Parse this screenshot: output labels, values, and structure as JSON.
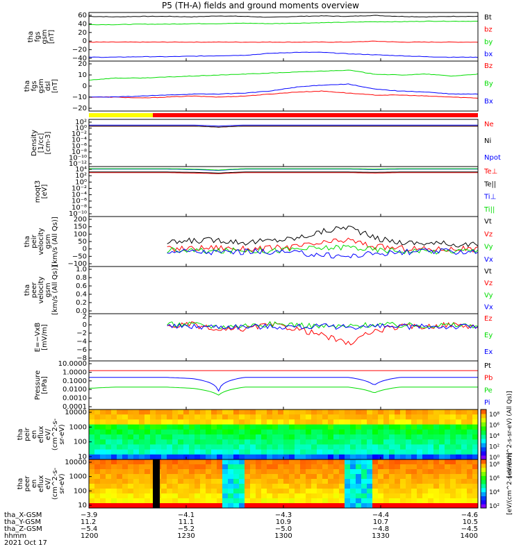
{
  "title": "P5 (TH-A) fields and ground moments overview",
  "colors": {
    "black": "#000000",
    "red": "#ff0000",
    "green": "#00dd00",
    "blue": "#0000ff",
    "yellow": "#ffff00"
  },
  "chart_data": [
    {
      "type": "line",
      "ylabel": [
        "tha",
        "fgs",
        "gsm",
        "[nT]"
      ],
      "ylim": [
        -40,
        60
      ],
      "yticks": [
        "60",
        "40",
        "20",
        "0",
        "−20",
        "−40"
      ],
      "series": [
        {
          "name": "Bt",
          "color": "#000000",
          "values": [
            52,
            51,
            52,
            52,
            51,
            53,
            52,
            50,
            52,
            53,
            52,
            54,
            52,
            51,
            52,
            52
          ]
        },
        {
          "name": "bz",
          "color": "#ff0000",
          "values": [
            -1,
            -1,
            -1,
            -1,
            -1,
            -1,
            -1,
            -1,
            -1,
            -1,
            -1,
            1,
            -1,
            -1,
            -1,
            -1
          ]
        },
        {
          "name": "by",
          "color": "#00dd00",
          "values": [
            35,
            35,
            36,
            36,
            37,
            37,
            38,
            37,
            38,
            39,
            40,
            41,
            41,
            42,
            42,
            42
          ]
        },
        {
          "name": "bx",
          "color": "#0000ff",
          "values": [
            -32,
            -32,
            -31,
            -31,
            -30,
            -29,
            -28,
            -24,
            -22,
            -22,
            -25,
            -27,
            -29,
            -31,
            -32,
            -32
          ]
        }
      ]
    },
    {
      "type": "line",
      "ylabel": [
        "tha",
        "fgs",
        "gsm",
        "dsl",
        "[nT]"
      ],
      "ylim": [
        -25,
        25
      ],
      "yticks": [
        "20",
        "10",
        "0",
        "−10",
        "−20"
      ],
      "series": [
        {
          "name": "Bz",
          "color": "#ff0000",
          "values": [
            -11,
            -11,
            -12,
            -11,
            -10,
            -11,
            -10,
            -8,
            -6,
            -5,
            -7,
            -9,
            -9,
            -10,
            -11,
            -12
          ]
        },
        {
          "name": "By",
          "color": "#00dd00",
          "values": [
            6,
            8,
            8,
            9,
            10,
            11,
            12,
            13,
            14,
            15,
            16,
            12,
            11,
            12,
            10,
            12
          ]
        },
        {
          "name": "Bx",
          "color": "#0000ff",
          "values": [
            -11,
            -11,
            -10,
            -9,
            -8,
            -8,
            -7,
            -5,
            -1,
            1,
            2,
            -3,
            -5,
            -6,
            -8,
            -8
          ]
        }
      ]
    },
    {
      "type": "line",
      "ylabel": [
        "Density",
        "[1/cc]",
        "[cm-3]"
      ],
      "ylim": [
        "1e-12",
        "1e2"
      ],
      "scale": "log",
      "yticks": [
        "10²",
        "10⁰",
        "10⁻²",
        "10⁻⁴",
        "10⁻⁶",
        "10⁻⁸",
        "10⁻¹⁰",
        "10⁻¹²"
      ],
      "series": [
        {
          "name": "Ne",
          "color": "#ff0000",
          "values": [
            1,
            1,
            1,
            1,
            1,
            0.5,
            1,
            1,
            1,
            1,
            1,
            1,
            1,
            1,
            1,
            1
          ]
        },
        {
          "name": "Ni",
          "color": "#000000",
          "values": [
            1,
            1,
            1,
            1,
            1,
            0.5,
            1,
            1,
            1,
            1,
            1,
            1,
            1,
            1,
            1,
            1
          ]
        },
        {
          "name": "Npot",
          "color": "#0000ff",
          "values": [
            2,
            2,
            2,
            2,
            2,
            1,
            2,
            2,
            2,
            2,
            2,
            2,
            2,
            2,
            2,
            2
          ]
        }
      ]
    },
    {
      "type": "line",
      "ylabel": [
        "moqt3",
        "[eV]"
      ],
      "ylim": [
        "1e-10",
        "1e4"
      ],
      "scale": "log",
      "yticks": [
        "10⁴",
        "10²",
        "10⁰",
        "10⁻²",
        "10⁻⁴",
        "10⁻⁶",
        "10⁻⁸",
        "10⁻¹⁰"
      ],
      "series": [
        {
          "name": "Te⊥",
          "color": "#ff0000",
          "values": [
            200,
            200,
            200,
            200,
            150,
            100,
            200,
            200,
            200,
            200,
            200,
            150,
            200,
            200,
            200,
            200
          ]
        },
        {
          "name": "Te||",
          "color": "#000000",
          "values": [
            300,
            300,
            300,
            300,
            250,
            150,
            300,
            300,
            300,
            300,
            300,
            250,
            300,
            300,
            300,
            300
          ]
        },
        {
          "name": "Ti⊥",
          "color": "#0000ff",
          "values": [
            2000,
            2000,
            2000,
            2000,
            1500,
            800,
            2000,
            2000,
            2000,
            2000,
            2000,
            1500,
            2000,
            2000,
            2000,
            2000
          ]
        },
        {
          "name": "Ti||",
          "color": "#00dd00",
          "values": [
            2500,
            2500,
            2500,
            2500,
            2000,
            1000,
            2500,
            2500,
            2500,
            2500,
            2500,
            2000,
            2500,
            2500,
            2500,
            2500
          ]
        }
      ]
    },
    {
      "type": "line",
      "ylabel": [
        "tha",
        "peir",
        "velocity",
        "gsm",
        "[km/s (All Qs)]"
      ],
      "ylim": [
        -100,
        200
      ],
      "yticks": [
        "200",
        "150",
        "100",
        "50",
        "0",
        "−50",
        "−100"
      ],
      "series": [
        {
          "name": "Vt",
          "color": "#000000",
          "values": [
            null,
            null,
            null,
            40,
            55,
            60,
            45,
            55,
            70,
            110,
            140,
            70,
            45,
            40,
            35,
            30
          ]
        },
        {
          "name": "Vz",
          "color": "#ff0000",
          "values": [
            null,
            null,
            null,
            5,
            10,
            15,
            5,
            10,
            20,
            40,
            60,
            20,
            10,
            5,
            5,
            5
          ]
        },
        {
          "name": "Vy",
          "color": "#00dd00",
          "values": [
            null,
            null,
            null,
            0,
            -5,
            -10,
            0,
            -5,
            5,
            10,
            20,
            0,
            -5,
            -10,
            -5,
            -5
          ]
        },
        {
          "name": "Vx",
          "color": "#0000ff",
          "values": [
            null,
            null,
            null,
            -5,
            -10,
            -15,
            -10,
            -10,
            -20,
            -30,
            -40,
            -20,
            -15,
            -10,
            -10,
            -10
          ]
        }
      ]
    },
    {
      "type": "line",
      "ylabel": [
        "tha",
        "peer",
        "velocity",
        "gsm",
        "[km/s (All Qs)]"
      ],
      "ylim": [
        0,
        1
      ],
      "yticks": [
        "1.0",
        "0.8",
        "0.6",
        "0.4",
        "0.2",
        "0.0"
      ],
      "series": [
        {
          "name": "Vt",
          "color": "#000000",
          "values": []
        },
        {
          "name": "Vz",
          "color": "#ff0000",
          "values": []
        },
        {
          "name": "Vy",
          "color": "#00dd00",
          "values": []
        },
        {
          "name": "Vx",
          "color": "#0000ff",
          "values": []
        }
      ]
    },
    {
      "type": "line",
      "ylabel": [
        "E=−VxB",
        "[mV/m]"
      ],
      "ylim": [
        -8,
        3
      ],
      "yticks": [
        "2",
        "0",
        "−2",
        "−4",
        "−6",
        "−8"
      ],
      "series": [
        {
          "name": "Ez",
          "color": "#ff0000",
          "values": [
            null,
            null,
            null,
            0,
            0.5,
            -1,
            -0.5,
            0.5,
            -0.5,
            -2,
            -4,
            -1,
            0,
            0,
            0.5,
            0
          ]
        },
        {
          "name": "Ey",
          "color": "#00dd00",
          "values": [
            null,
            null,
            null,
            0.5,
            0.5,
            0,
            0.3,
            0.5,
            0.5,
            0,
            0,
            0.5,
            0.3,
            0.3,
            0.3,
            0.3
          ]
        },
        {
          "name": "Ex",
          "color": "#0000ff",
          "values": [
            null,
            null,
            null,
            0,
            0,
            0,
            0,
            0,
            0,
            0,
            0,
            0,
            0,
            0,
            0,
            0
          ]
        }
      ]
    },
    {
      "type": "line",
      "ylabel": [
        "Pressure",
        "[nPa]"
      ],
      "ylim": [
        "0.0001",
        "10"
      ],
      "scale": "log",
      "yticks": [
        "10.0000",
        "1.0000",
        "0.1000",
        "0.0100",
        "0.0010",
        "0.0001"
      ],
      "series": [
        {
          "name": "Pt",
          "color": "#000000",
          "values": [
            1,
            1,
            1,
            1,
            1,
            1,
            1,
            1,
            1,
            1,
            1,
            1,
            1,
            1,
            1,
            1
          ]
        },
        {
          "name": "Pb",
          "color": "#ff0000",
          "values": [
            1,
            1,
            1,
            1,
            1,
            1,
            1,
            1,
            1,
            1,
            1,
            1,
            1,
            1,
            1,
            1
          ]
        },
        {
          "name": "Pe",
          "color": "#00dd00",
          "values": [
            0.015,
            0.02,
            0.02,
            0.02,
            0.015,
            0.003,
            0.02,
            0.02,
            0.02,
            0.02,
            0.02,
            0.005,
            0.02,
            0.02,
            0.02,
            0.02
          ]
        },
        {
          "name": "Pi",
          "color": "#0000ff",
          "values": [
            0.2,
            0.2,
            0.2,
            0.2,
            0.15,
            0.008,
            0.2,
            0.2,
            0.2,
            0.2,
            0.2,
            0.03,
            0.2,
            0.2,
            0.2,
            0.2
          ]
        }
      ]
    },
    {
      "type": "heatmap",
      "ylabel": [
        "tha",
        "peir",
        "en",
        "eflux",
        "eV/",
        "(cm^2-s-",
        "sr-eV)"
      ],
      "scale": "log",
      "yticks": [
        "10000",
        "1000",
        "100",
        "10"
      ],
      "colorbar": {
        "label": "[eV/(cm^2-s-sr-eV) (All Qs)]",
        "ticks": [
          "10⁸",
          "10⁶",
          "10⁴",
          "10²",
          "10⁰"
        ]
      }
    },
    {
      "type": "heatmap",
      "ylabel": [
        "tha",
        "peer",
        "en",
        "eflux",
        "eV/",
        "(cm^2-s-",
        "sr-eV)"
      ],
      "scale": "log",
      "yticks": [
        "10000",
        "1000",
        "100",
        "10"
      ],
      "colorbar": {
        "label": "[eV/(cm^2-s-sr-eV)]",
        "ticks": [
          "10⁸",
          "10⁶",
          "10⁴",
          "10²"
        ]
      }
    }
  ],
  "xaxis": {
    "labels": [
      "tha_X-GSM",
      "tha_Y-GSM",
      "tha_Z-GSM",
      "hhmm",
      "2021 Oct 17"
    ],
    "ticks": [
      {
        "t": "1200",
        "x": "−3.9",
        "y": "11.2",
        "z": "−5.4"
      },
      {
        "t": "1230",
        "x": "−4.1",
        "y": "11.1",
        "z": "−5.2"
      },
      {
        "t": "1300",
        "x": "−4.3",
        "y": "10.9",
        "z": "−5.0"
      },
      {
        "t": "1330",
        "x": "−4.4",
        "y": "10.7",
        "z": "−4.8"
      },
      {
        "t": "1400",
        "x": "−4.6",
        "y": "10.5",
        "z": "−4.5"
      }
    ]
  }
}
